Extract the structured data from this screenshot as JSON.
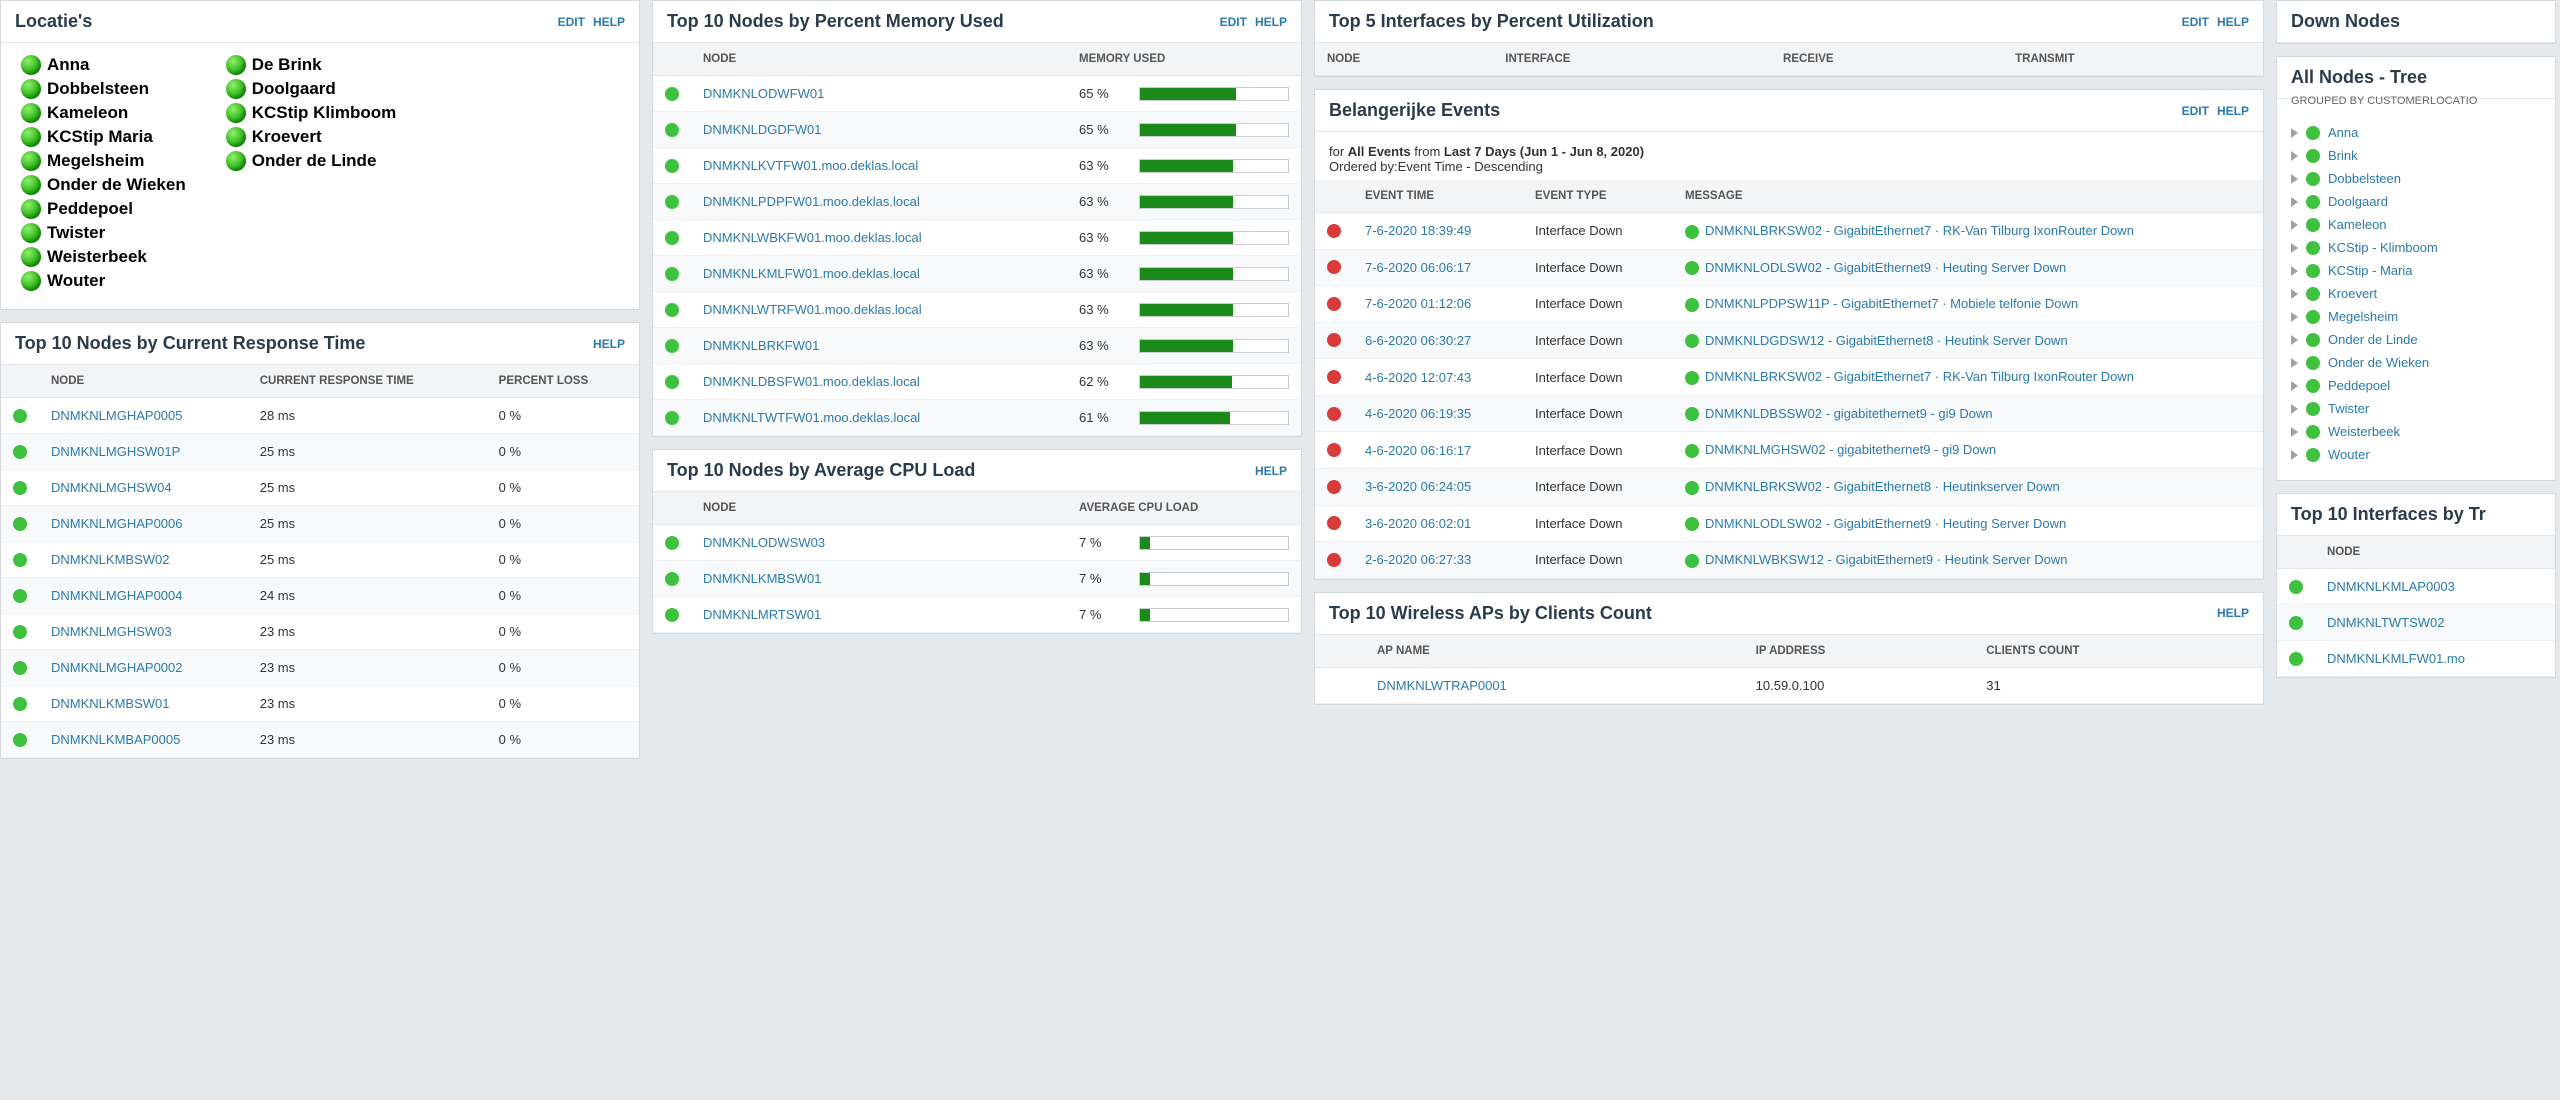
{
  "colors": {
    "link": "#2a7ab0",
    "green": "#3ec13e",
    "red": "#d93a3a",
    "bar": "#1a8a1a"
  },
  "locaties": {
    "title": "Locatie's",
    "edit": "EDIT",
    "help": "HELP",
    "left": [
      "Anna",
      "Dobbelsteen",
      "Kameleon",
      "KCStip Maria",
      "Megelsheim",
      "Onder de Wieken",
      "Peddepoel",
      "Twister",
      "Weisterbeek",
      "Wouter"
    ],
    "right": [
      "De Brink",
      "Doolgaard",
      "KCStip Klimboom",
      "Kroevert",
      "Onder de Linde"
    ]
  },
  "responseTime": {
    "title": "Top 10 Nodes by Current Response Time",
    "help": "HELP",
    "cols": [
      "NODE",
      "CURRENT RESPONSE TIME",
      "PERCENT LOSS"
    ],
    "rows": [
      {
        "n": "DNMKNLMGHAP0005",
        "t": "28 ms",
        "l": "0 %"
      },
      {
        "n": "DNMKNLMGHSW01P",
        "t": "25 ms",
        "l": "0 %"
      },
      {
        "n": "DNMKNLMGHSW04",
        "t": "25 ms",
        "l": "0 %"
      },
      {
        "n": "DNMKNLMGHAP0006",
        "t": "25 ms",
        "l": "0 %"
      },
      {
        "n": "DNMKNLKMBSW02",
        "t": "25 ms",
        "l": "0 %"
      },
      {
        "n": "DNMKNLMGHAP0004",
        "t": "24 ms",
        "l": "0 %"
      },
      {
        "n": "DNMKNLMGHSW03",
        "t": "23 ms",
        "l": "0 %"
      },
      {
        "n": "DNMKNLMGHAP0002",
        "t": "23 ms",
        "l": "0 %"
      },
      {
        "n": "DNMKNLKMBSW01",
        "t": "23 ms",
        "l": "0 %"
      },
      {
        "n": "DNMKNLKMBAP0005",
        "t": "23 ms",
        "l": "0 %"
      }
    ]
  },
  "memory": {
    "title": "Top 10 Nodes by Percent Memory Used",
    "edit": "EDIT",
    "help": "HELP",
    "cols": [
      "NODE",
      "MEMORY USED"
    ],
    "rows": [
      {
        "n": "DNMKNLODWFW01",
        "p": "65 %",
        "v": 65
      },
      {
        "n": "DNMKNLDGDFW01",
        "p": "65 %",
        "v": 65
      },
      {
        "n": "DNMKNLKVTFW01.moo.deklas.local",
        "p": "63 %",
        "v": 63
      },
      {
        "n": "DNMKNLPDPFW01.moo.deklas.local",
        "p": "63 %",
        "v": 63
      },
      {
        "n": "DNMKNLWBKFW01.moo.deklas.local",
        "p": "63 %",
        "v": 63
      },
      {
        "n": "DNMKNLKMLFW01.moo.deklas.local",
        "p": "63 %",
        "v": 63
      },
      {
        "n": "DNMKNLWTRFW01.moo.deklas.local",
        "p": "63 %",
        "v": 63
      },
      {
        "n": "DNMKNLBRKFW01",
        "p": "63 %",
        "v": 63
      },
      {
        "n": "DNMKNLDBSFW01.moo.deklas.local",
        "p": "62 %",
        "v": 62
      },
      {
        "n": "DNMKNLTWTFW01.moo.deklas.local",
        "p": "61 %",
        "v": 61
      }
    ]
  },
  "cpu": {
    "title": "Top 10 Nodes by Average CPU Load",
    "help": "HELP",
    "cols": [
      "NODE",
      "AVERAGE CPU LOAD"
    ],
    "rows": [
      {
        "n": "DNMKNLODWSW03",
        "p": "7 %",
        "v": 7
      },
      {
        "n": "DNMKNLKMBSW01",
        "p": "7 %",
        "v": 7
      },
      {
        "n": "DNMKNLMRTSW01",
        "p": "7 %",
        "v": 7
      }
    ]
  },
  "ifUtil": {
    "title": "Top 5 Interfaces by Percent Utilization",
    "edit": "EDIT",
    "help": "HELP",
    "cols": [
      "NODE",
      "INTERFACE",
      "RECEIVE",
      "TRANSMIT"
    ]
  },
  "events": {
    "title": "Belangerijke Events",
    "edit": "EDIT",
    "help": "HELP",
    "intro1a": "for ",
    "intro1b": "All Events",
    "intro1c": " from ",
    "intro1d": "Last 7 Days (Jun 1 - Jun 8, 2020)",
    "intro2": "Ordered by:Event Time - Descending",
    "cols": [
      "EVENT TIME",
      "EVENT TYPE",
      "MESSAGE"
    ],
    "rows": [
      {
        "t": "7-6-2020 18:39:49",
        "y": "Interface Down",
        "m": "DNMKNLBRKSW02 - GigabitEthernet7 · RK-Van Tilburg IxonRouter Down"
      },
      {
        "t": "7-6-2020 06:06:17",
        "y": "Interface Down",
        "m": "DNMKNLODLSW02 - GigabitEthernet9 · Heuting Server Down"
      },
      {
        "t": "7-6-2020 01:12:06",
        "y": "Interface Down",
        "m": "DNMKNLPDPSW11P - GigabitEthernet7 · Mobiele telfonie Down"
      },
      {
        "t": "6-6-2020 06:30:27",
        "y": "Interface Down",
        "m": "DNMKNLDGDSW12 - GigabitEthernet8 · Heutink Server Down"
      },
      {
        "t": "4-6-2020 12:07:43",
        "y": "Interface Down",
        "m": "DNMKNLBRKSW02 - GigabitEthernet7 · RK-Van Tilburg IxonRouter Down"
      },
      {
        "t": "4-6-2020 06:19:35",
        "y": "Interface Down",
        "m": "DNMKNLDBSSW02 - gigabitethernet9 - gi9 Down"
      },
      {
        "t": "4-6-2020 06:16:17",
        "y": "Interface Down",
        "m": "DNMKNLMGHSW02 - gigabitethernet9 - gi9 Down"
      },
      {
        "t": "3-6-2020 06:24:05",
        "y": "Interface Down",
        "m": "DNMKNLBRKSW02 - GigabitEthernet8 · Heutinkserver Down"
      },
      {
        "t": "3-6-2020 06:02:01",
        "y": "Interface Down",
        "m": "DNMKNLODLSW02 - GigabitEthernet9 · Heuting Server Down"
      },
      {
        "t": "2-6-2020 06:27:33",
        "y": "Interface Down",
        "m": "DNMKNLWBKSW12 - GigabitEthernet9 · Heutink Server Down"
      }
    ]
  },
  "aps": {
    "title": "Top 10 Wireless APs by Clients Count",
    "help": "HELP",
    "cols": [
      "AP NAME",
      "IP ADDRESS",
      "CLIENTS COUNT"
    ],
    "rows": [
      {
        "n": "DNMKNLWTRAP0001",
        "ip": "10.59.0.100",
        "c": "31"
      }
    ]
  },
  "down": {
    "title": "Down Nodes"
  },
  "tree": {
    "title": "All Nodes - Tree",
    "sub": "GROUPED BY CUSTOMERLOCATIO",
    "items": [
      "Anna",
      "Brink",
      "Dobbelsteen",
      "Doolgaard",
      "Kameleon",
      "KCStip - Klimboom",
      "KCStip - Maria",
      "Kroevert",
      "Megelsheim",
      "Onder de Linde",
      "Onder de Wieken",
      "Peddepoel",
      "Twister",
      "Weisterbeek",
      "Wouter"
    ]
  },
  "ifTraffic": {
    "title": "Top 10 Interfaces by Tr",
    "cols": [
      "NODE"
    ],
    "rows": [
      "DNMKNLKMLAP0003",
      "DNMKNLTWTSW02",
      "DNMKNLKMLFW01.mo"
    ]
  }
}
